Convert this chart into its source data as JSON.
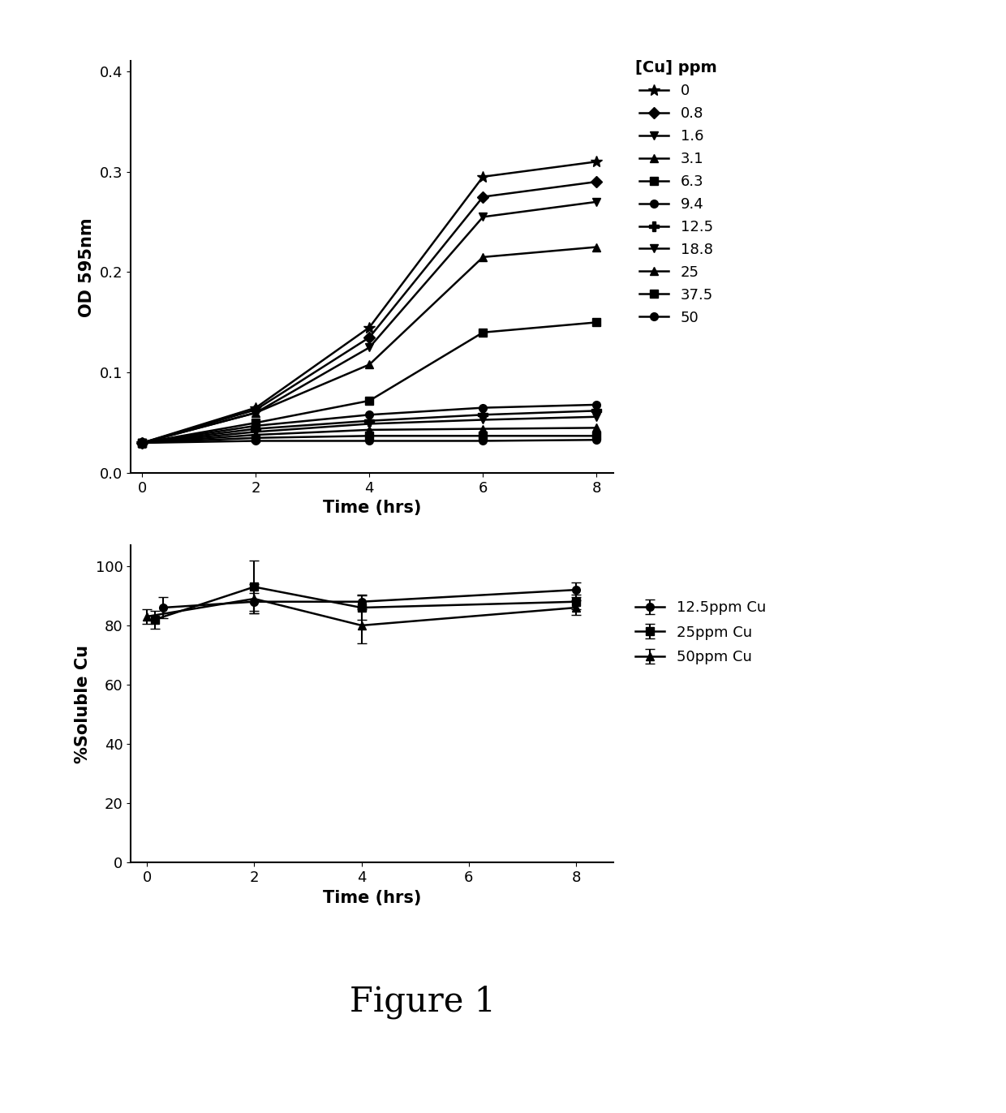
{
  "top": {
    "xlabel": "Time (hrs)",
    "ylabel": "OD 595nm",
    "xlim": [
      -0.2,
      8.3
    ],
    "ylim": [
      0.0,
      0.41
    ],
    "yticks": [
      0.0,
      0.1,
      0.2,
      0.3,
      0.4
    ],
    "xticks": [
      0,
      2,
      4,
      6,
      8
    ],
    "legend_title": "[Cu] ppm",
    "series": [
      {
        "label": "0",
        "x": [
          0,
          2,
          4,
          6,
          8
        ],
        "y": [
          0.03,
          0.065,
          0.145,
          0.295,
          0.31
        ],
        "marker": "*",
        "ms": 10
      },
      {
        "label": "0.8",
        "x": [
          0,
          2,
          4,
          6,
          8
        ],
        "y": [
          0.03,
          0.063,
          0.135,
          0.275,
          0.29
        ],
        "marker": "D",
        "ms": 7
      },
      {
        "label": "1.6",
        "x": [
          0,
          2,
          4,
          6,
          8
        ],
        "y": [
          0.03,
          0.06,
          0.125,
          0.255,
          0.27
        ],
        "marker": "v",
        "ms": 7
      },
      {
        "label": "3.1",
        "x": [
          0,
          2,
          4,
          6,
          8
        ],
        "y": [
          0.03,
          0.06,
          0.108,
          0.215,
          0.225
        ],
        "marker": "^",
        "ms": 7
      },
      {
        "label": "6.3",
        "x": [
          0,
          2,
          4,
          6,
          8
        ],
        "y": [
          0.03,
          0.05,
          0.072,
          0.14,
          0.15
        ],
        "marker": "s",
        "ms": 7
      },
      {
        "label": "9.4",
        "x": [
          0,
          2,
          4,
          6,
          8
        ],
        "y": [
          0.03,
          0.047,
          0.058,
          0.065,
          0.068
        ],
        "marker": "o",
        "ms": 7
      },
      {
        "label": "12.5",
        "x": [
          0,
          2,
          4,
          6,
          8
        ],
        "y": [
          0.03,
          0.044,
          0.052,
          0.058,
          0.062
        ],
        "marker": "P",
        "ms": 8
      },
      {
        "label": "18.8",
        "x": [
          0,
          2,
          4,
          6,
          8
        ],
        "y": [
          0.03,
          0.041,
          0.049,
          0.053,
          0.056
        ],
        "marker": "v",
        "ms": 7
      },
      {
        "label": "25",
        "x": [
          0,
          2,
          4,
          6,
          8
        ],
        "y": [
          0.03,
          0.038,
          0.043,
          0.044,
          0.045
        ],
        "marker": "^",
        "ms": 7
      },
      {
        "label": "37.5",
        "x": [
          0,
          2,
          4,
          6,
          8
        ],
        "y": [
          0.03,
          0.035,
          0.037,
          0.037,
          0.037
        ],
        "marker": "s",
        "ms": 7
      },
      {
        "label": "50",
        "x": [
          0,
          2,
          4,
          6,
          8
        ],
        "y": [
          0.03,
          0.032,
          0.032,
          0.032,
          0.033
        ],
        "marker": "o",
        "ms": 7
      }
    ]
  },
  "bottom": {
    "xlabel": "Time (hrs)",
    "ylabel": "%Soluble Cu",
    "xlim": [
      -0.3,
      8.7
    ],
    "ylim": [
      0,
      107
    ],
    "yticks": [
      0,
      20,
      40,
      60,
      80,
      100
    ],
    "xticks": [
      0,
      2,
      4,
      6,
      8
    ],
    "series": [
      {
        "label": "12.5ppm Cu",
        "x": [
          0.3,
          2,
          4,
          8
        ],
        "y": [
          86,
          88,
          88,
          92
        ],
        "yerr": [
          3.5,
          3,
          2.5,
          2.5
        ],
        "marker": "o",
        "ms": 7
      },
      {
        "label": "25ppm Cu",
        "x": [
          0.15,
          2,
          4,
          8
        ],
        "y": [
          82,
          93,
          86,
          88
        ],
        "yerr": [
          3,
          9,
          4,
          2.5
        ],
        "marker": "s",
        "ms": 7
      },
      {
        "label": "50ppm Cu",
        "x": [
          0.0,
          2,
          4,
          8
        ],
        "y": [
          83,
          89,
          80,
          86
        ],
        "yerr": [
          2.5,
          5,
          6,
          2.5
        ],
        "marker": "^",
        "ms": 7
      }
    ]
  },
  "figure_label": "Figure 1",
  "line_color": "#000000",
  "bg_color": "#ffffff"
}
